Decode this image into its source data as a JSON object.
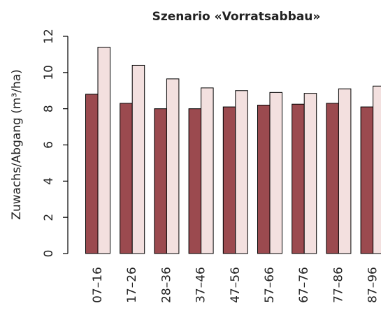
{
  "chart_data": {
    "type": "bar",
    "title": "Szenario «Vorratsabbau»",
    "y_label": "Zuwachs/Abgang (m³/ha)",
    "categories": [
      "07–16",
      "17–26",
      "28–36",
      "37–46",
      "47–56",
      "57–66",
      "67–76",
      "77–86",
      "87–96"
    ],
    "series": [
      {
        "color": "#9b4a4f",
        "values": [
          8.8,
          8.3,
          8.0,
          8.0,
          8.1,
          8.2,
          8.25,
          8.3,
          8.1
        ]
      },
      {
        "color": "#f3e0df",
        "values": [
          11.4,
          10.4,
          9.65,
          9.15,
          9.0,
          8.9,
          8.85,
          9.1,
          9.25
        ]
      }
    ],
    "ylim": [
      0,
      12
    ],
    "yticks": [
      0,
      2,
      4,
      6,
      8,
      10,
      12
    ]
  }
}
